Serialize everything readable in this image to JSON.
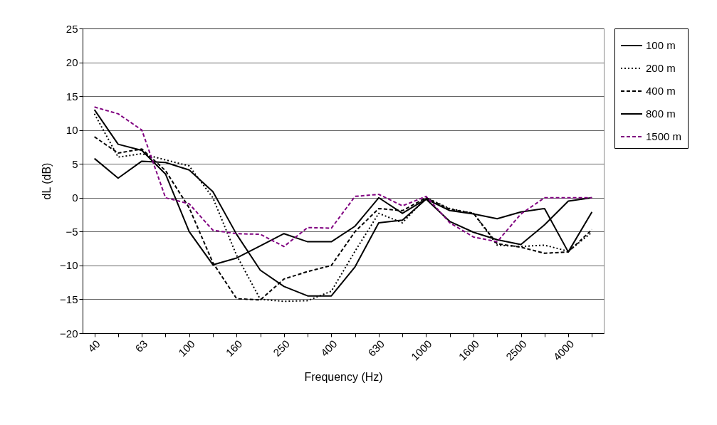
{
  "chart_data": {
    "type": "line",
    "xlabel": "Frequency (Hz)",
    "ylabel": "dL (dB)",
    "categories": [
      "40",
      null,
      "63",
      null,
      "100",
      null,
      "160",
      null,
      "250",
      null,
      "400",
      null,
      "630",
      null,
      "1000",
      null,
      "1600",
      null,
      "2500",
      null,
      "4000",
      null
    ],
    "ylim": [
      -20,
      25
    ],
    "yticks": [
      -20,
      -15,
      -10,
      -5,
      0,
      5,
      10,
      15,
      20,
      25
    ],
    "grid": "y",
    "legend": "right",
    "marker": "none",
    "series": [
      {
        "name": "100 m",
        "color": "#000000",
        "line_style": "solid",
        "values": [
          5.8,
          2.9,
          5.4,
          5.2,
          4.1,
          0.9,
          -5.4,
          -10.7,
          -13.1,
          -14.5,
          -14.5,
          -10.2,
          -3.7,
          -3.3,
          -0.2,
          -1.9,
          -2.4,
          -3.1,
          -2.1,
          -1.6,
          -8,
          -2.1
        ]
      },
      {
        "name": "200 m",
        "color": "#000000",
        "line_style": "dotted",
        "values": [
          12.4,
          6,
          6.5,
          5.6,
          4.7,
          0,
          -8.5,
          -15,
          -15.3,
          -15.2,
          -13.8,
          -7.9,
          -2.3,
          -3.7,
          0,
          -1.6,
          -2.3,
          -7,
          -7.2,
          -7,
          -7.9,
          -5.1
        ]
      },
      {
        "name": "400 m",
        "color": "#000000",
        "line_style": "dashed",
        "values": [
          9,
          6.6,
          7.2,
          4,
          -1.5,
          -9.6,
          -14.9,
          -15.1,
          -12,
          -10.9,
          -10,
          -5,
          -1.6,
          -1.9,
          0,
          -1.7,
          -2.3,
          -6.8,
          -7.3,
          -8.2,
          -8,
          -4.7
        ]
      },
      {
        "name": "800 m",
        "color": "#000000",
        "line_style": "solid",
        "values": [
          13,
          7.9,
          7,
          3.5,
          -5,
          -9.9,
          -8.9,
          -7.1,
          -5.3,
          -6.5,
          -6.5,
          -4.2,
          0,
          -2.3,
          -0.2,
          -3.5,
          -5.1,
          -6.2,
          -6.9,
          -4,
          -0.5,
          0
        ]
      },
      {
        "name": "1500 m",
        "color": "#800080",
        "line_style": "dashed",
        "values": [
          13.4,
          12.4,
          10,
          0,
          -0.9,
          -4.8,
          -5.3,
          -5.4,
          -7.2,
          -4.4,
          -4.5,
          0.2,
          0.5,
          -1.2,
          0.2,
          -3.7,
          -5.8,
          -6.5,
          -2.4,
          0,
          0,
          0
        ]
      }
    ]
  }
}
